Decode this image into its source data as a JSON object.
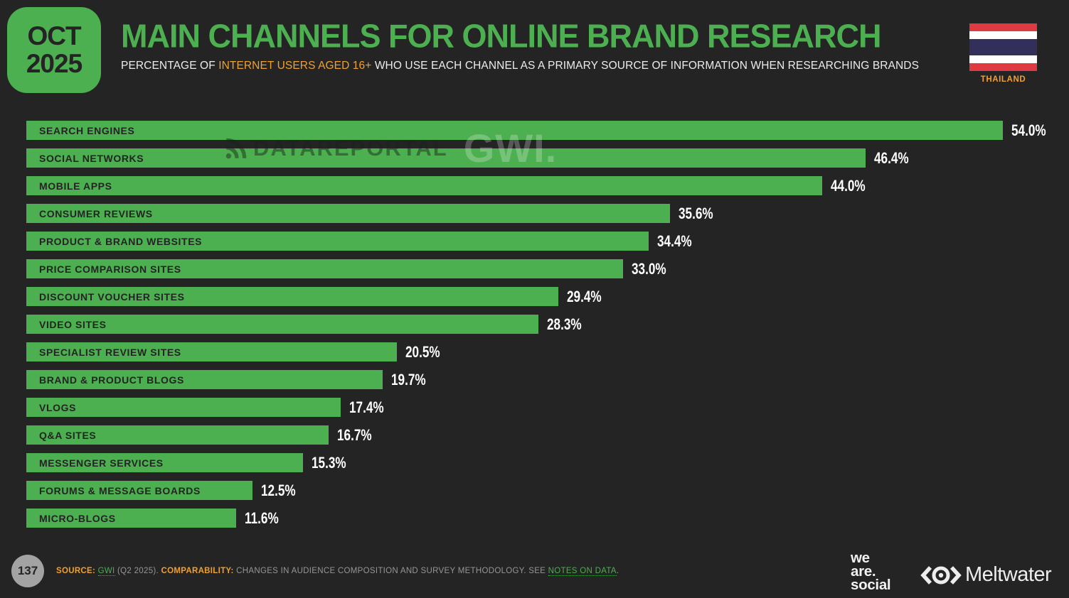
{
  "header": {
    "date_badge": {
      "month": "OCT",
      "year": "2025"
    },
    "title": "MAIN CHANNELS FOR ONLINE BRAND RESEARCH",
    "subtitle_prefix": "PERCENTAGE OF ",
    "subtitle_highlight": "INTERNET USERS AGED 16+",
    "subtitle_suffix": " WHO USE EACH CHANNEL AS A PRIMARY SOURCE OF INFORMATION WHEN RESEARCHING BRANDS",
    "country": "THAILAND"
  },
  "watermark": {
    "dataportal": "DATAREPORTAL",
    "gwi": "GWI."
  },
  "chart_data": {
    "type": "bar",
    "orientation": "horizontal",
    "title": "MAIN CHANNELS FOR ONLINE BRAND RESEARCH",
    "xlabel": "",
    "ylabel": "",
    "xlim": [
      0,
      54
    ],
    "grid": false,
    "bar_color": "#4CAF50",
    "categories": [
      "SEARCH ENGINES",
      "SOCIAL NETWORKS",
      "MOBILE APPS",
      "CONSUMER REVIEWS",
      "PRODUCT & BRAND WEBSITES",
      "PRICE COMPARISON SITES",
      "DISCOUNT VOUCHER SITES",
      "VIDEO SITES",
      "SPECIALIST REVIEW SITES",
      "BRAND & PRODUCT BLOGS",
      "VLOGS",
      "Q&A SITES",
      "MESSENGER SERVICES",
      "FORUMS & MESSAGE BOARDS",
      "MICRO-BLOGS"
    ],
    "values": [
      54.0,
      46.4,
      44.0,
      35.6,
      34.4,
      33.0,
      29.4,
      28.3,
      20.5,
      19.7,
      17.4,
      16.7,
      15.3,
      12.5,
      11.6
    ],
    "value_labels": [
      "54.0%",
      "46.4%",
      "44.0%",
      "35.6%",
      "34.4%",
      "33.0%",
      "29.4%",
      "28.3%",
      "20.5%",
      "19.7%",
      "17.4%",
      "16.7%",
      "15.3%",
      "12.5%",
      "11.6%"
    ]
  },
  "footer": {
    "page_number": "137",
    "source_label": "SOURCE:",
    "source_link": "GWI",
    "source_detail": " (Q2 2025). ",
    "comparability_label": "COMPARABILITY:",
    "comparability_text": " CHANGES IN AUDIENCE COMPOSITION AND SURVEY METHODOLOGY. SEE ",
    "notes_link": "NOTES ON DATA",
    "sentence_end": ".",
    "logos": {
      "we_are_social": [
        "we",
        "are.",
        "social"
      ],
      "meltwater": "Meltwater"
    }
  },
  "colors": {
    "background": "#242424",
    "accent_green": "#4CAF50",
    "accent_orange": "#F0A030",
    "value_text": "#FFFFFF",
    "footer_gray": "#969696",
    "flag_red": "#DF3A41",
    "flag_white": "#FFFFFF",
    "flag_navy": "#332F5B"
  }
}
